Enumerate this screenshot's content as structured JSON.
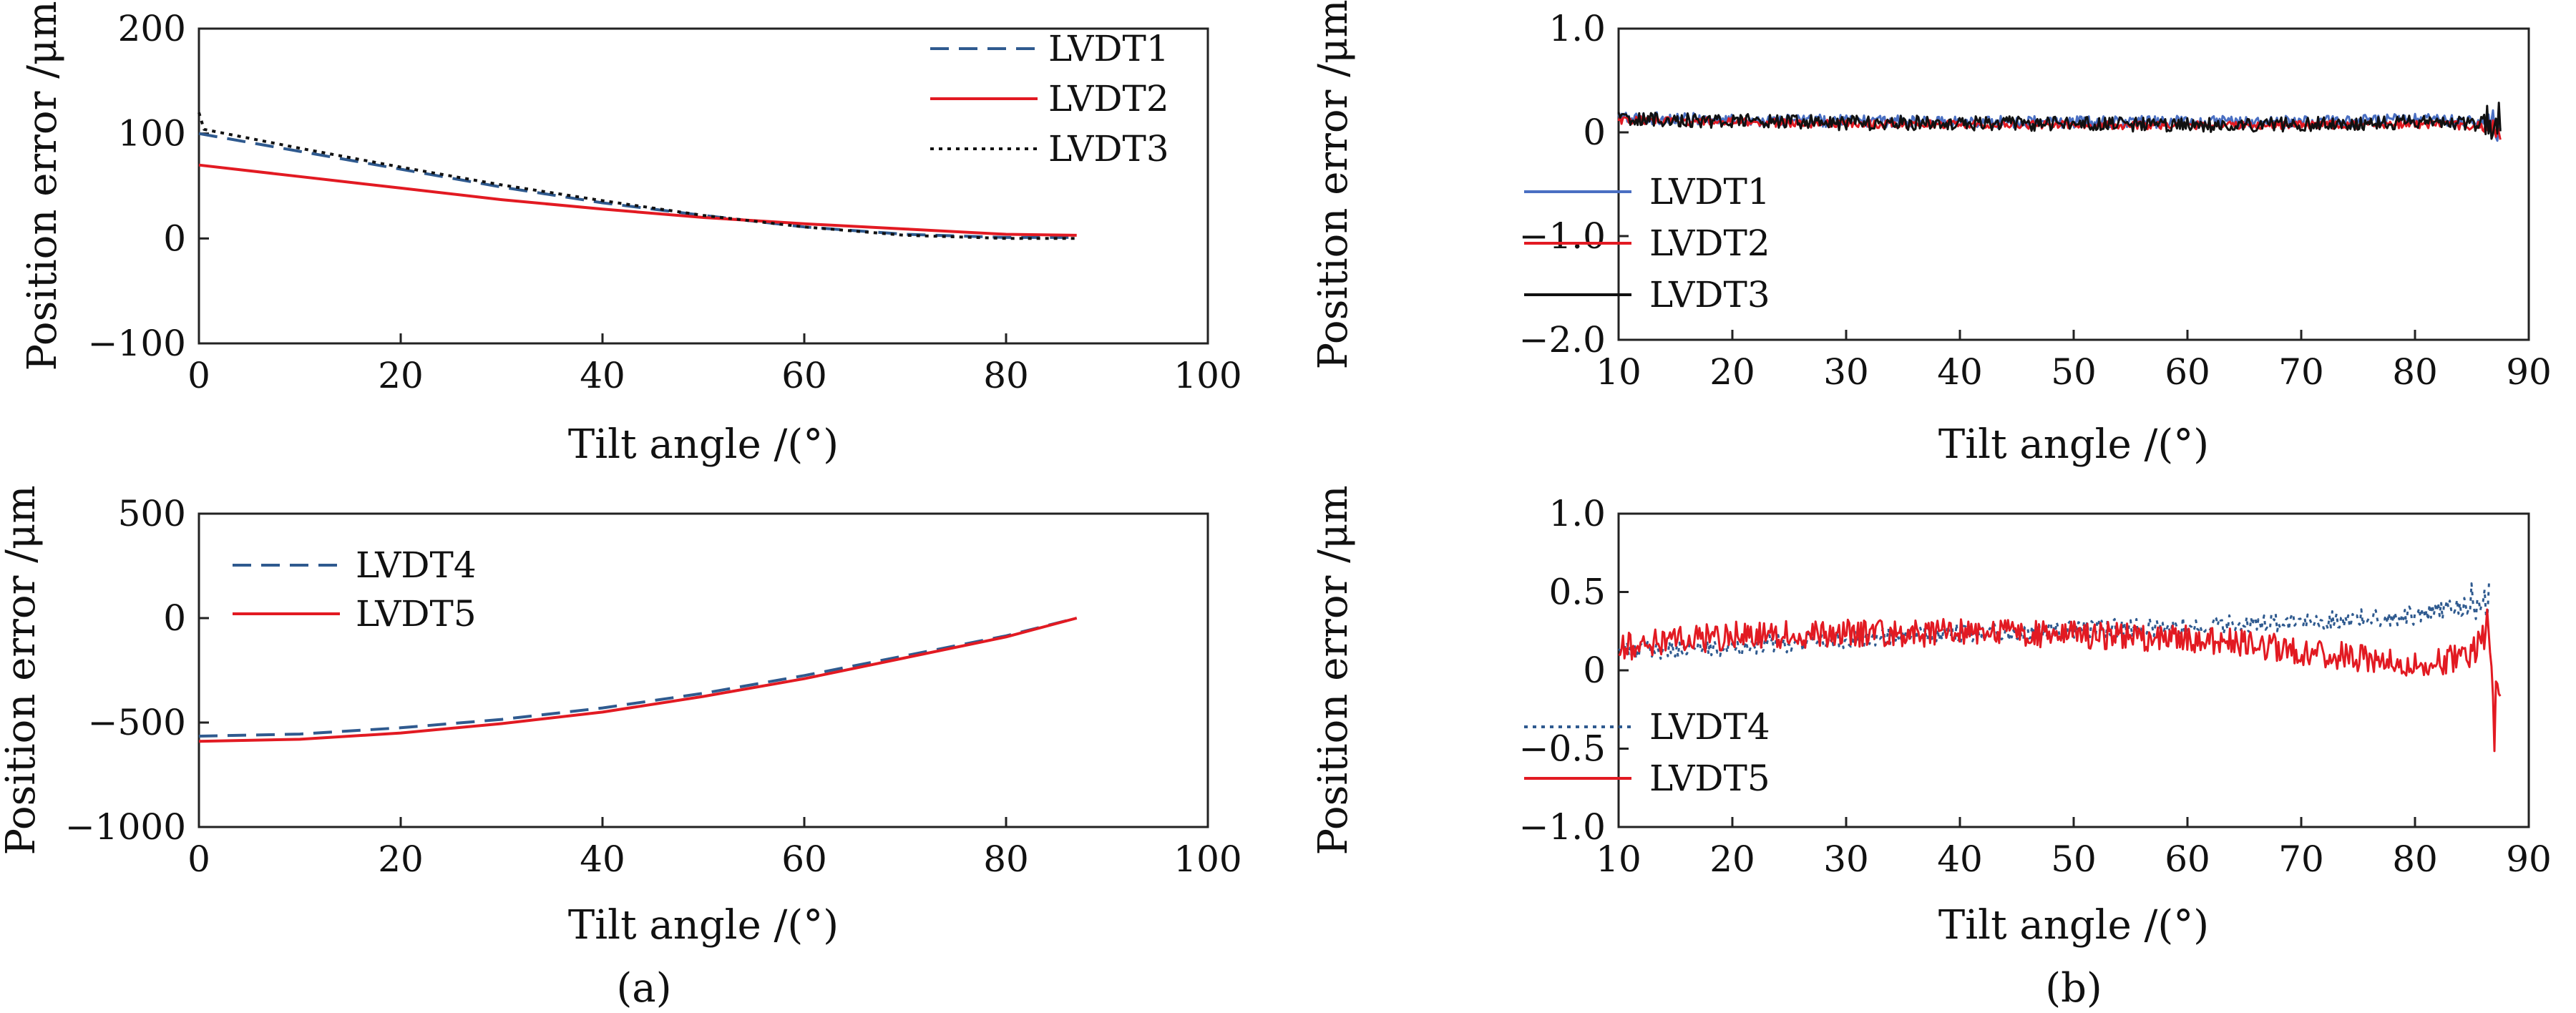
{
  "chart_data": [
    {
      "id": "a-top",
      "type": "line",
      "xlabel": "Tilt angle /(°)",
      "ylabel": "Position error /μm",
      "xlim": [
        0,
        100
      ],
      "ylim": [
        -100,
        200
      ],
      "xticks": [
        "0",
        "20",
        "40",
        "60",
        "80",
        "100"
      ],
      "yticks": [
        "200",
        "100",
        "0",
        "−100"
      ],
      "legend_position": "top-right",
      "series": [
        {
          "name": "LVDT1",
          "color": "#2f5a8f",
          "dash": "long-dash",
          "x": [
            0,
            10,
            20,
            30,
            40,
            50,
            60,
            70,
            80,
            87
          ],
          "y": [
            100,
            83,
            66,
            49,
            34,
            22,
            11,
            4,
            1,
            1
          ]
        },
        {
          "name": "LVDT2",
          "color": "#e21a22",
          "dash": "solid",
          "x": [
            0,
            10,
            20,
            30,
            40,
            50,
            60,
            70,
            80,
            87
          ],
          "y": [
            70,
            59,
            48,
            37,
            28,
            20,
            14,
            9,
            4,
            3
          ]
        },
        {
          "name": "LVDT3",
          "color": "#111111",
          "dash": "dotted",
          "x": [
            0,
            0.5,
            10,
            20,
            30,
            40,
            50,
            60,
            70,
            80,
            87
          ],
          "y": [
            120,
            104,
            86,
            68,
            51,
            36,
            22,
            11,
            3,
            0,
            0
          ]
        }
      ]
    },
    {
      "id": "b-top",
      "type": "line",
      "xlabel": "Tilt angle /(°)",
      "ylabel": "Position error /μm",
      "xlim": [
        10,
        90
      ],
      "ylim": [
        -2.0,
        1.0
      ],
      "xticks": [
        "10",
        "20",
        "30",
        "40",
        "50",
        "60",
        "70",
        "80",
        "90"
      ],
      "yticks": [
        "1.0",
        "0",
        "−1.0",
        "−2.0"
      ],
      "legend_position": "bottom-left",
      "series": [
        {
          "name": "LVDT1",
          "color": "#4a6fc2",
          "dash": "solid",
          "noise": 0.06,
          "x": [
            10,
            20,
            30,
            40,
            50,
            60,
            70,
            80,
            86,
            87.5
          ],
          "y": [
            0.14,
            0.12,
            0.11,
            0.1,
            0.1,
            0.1,
            0.1,
            0.12,
            0.1,
            0.05
          ]
        },
        {
          "name": "LVDT2",
          "color": "#e21a22",
          "dash": "solid",
          "noise": 0.04,
          "x": [
            10,
            20,
            30,
            40,
            50,
            60,
            70,
            80,
            86,
            87.5
          ],
          "y": [
            0.12,
            0.1,
            0.08,
            0.08,
            0.07,
            0.07,
            0.07,
            0.08,
            0.06,
            0.0
          ]
        },
        {
          "name": "LVDT3",
          "color": "#111111",
          "dash": "solid",
          "noise": 0.07,
          "x": [
            10,
            20,
            30,
            40,
            50,
            60,
            70,
            80,
            86,
            87.5
          ],
          "y": [
            0.13,
            0.11,
            0.09,
            0.09,
            0.08,
            0.07,
            0.08,
            0.1,
            0.08,
            0.1
          ]
        }
      ]
    },
    {
      "id": "a-bottom",
      "type": "line",
      "xlabel": "Tilt angle /(°)",
      "ylabel": "Position error /μm",
      "xlim": [
        0,
        100
      ],
      "ylim": [
        -1000,
        500
      ],
      "xticks": [
        "0",
        "20",
        "40",
        "60",
        "80",
        "100"
      ],
      "yticks": [
        "500",
        "0",
        "−500",
        "−1000"
      ],
      "legend_position": "top-left",
      "series": [
        {
          "name": "LVDT4",
          "color": "#2f5a8f",
          "dash": "long-dash",
          "x": [
            0,
            10,
            20,
            30,
            40,
            50,
            60,
            70,
            80,
            87
          ],
          "y": [
            -565,
            -555,
            -525,
            -485,
            -430,
            -360,
            -275,
            -180,
            -85,
            0
          ]
        },
        {
          "name": "LVDT5",
          "color": "#e21a22",
          "dash": "solid",
          "x": [
            0,
            10,
            20,
            30,
            40,
            50,
            60,
            70,
            80,
            87
          ],
          "y": [
            -590,
            -580,
            -550,
            -505,
            -450,
            -375,
            -290,
            -190,
            -90,
            0
          ]
        }
      ]
    },
    {
      "id": "b-bottom",
      "type": "line",
      "xlabel": "Tilt angle /(°)",
      "ylabel": "Position error /μm",
      "xlim": [
        10,
        90
      ],
      "ylim": [
        -1.0,
        1.0
      ],
      "xticks": [
        "10",
        "20",
        "30",
        "40",
        "50",
        "60",
        "70",
        "80",
        "90"
      ],
      "yticks": [
        "1.0",
        "0.5",
        "0",
        "−0.5",
        "−1.0"
      ],
      "legend_position": "bottom-left",
      "series": [
        {
          "name": "LVDT4",
          "color": "#2f5a8f",
          "dash": "dotted",
          "noise": 0.06,
          "x": [
            10,
            20,
            30,
            40,
            50,
            60,
            70,
            80,
            85,
            86.5
          ],
          "y": [
            0.12,
            0.15,
            0.2,
            0.24,
            0.26,
            0.28,
            0.31,
            0.35,
            0.42,
            0.48
          ]
        },
        {
          "name": "LVDT5",
          "color": "#e21a22",
          "dash": "solid",
          "noise": 0.09,
          "x": [
            10,
            20,
            30,
            40,
            50,
            60,
            65,
            70,
            75,
            80,
            85,
            86.5,
            87,
            87.5
          ],
          "y": [
            0.15,
            0.22,
            0.24,
            0.24,
            0.23,
            0.2,
            0.18,
            0.12,
            0.08,
            0.02,
            0.1,
            0.3,
            -0.3,
            0.0
          ]
        }
      ]
    }
  ],
  "captions": {
    "a": "(a)",
    "b": "(b)"
  }
}
